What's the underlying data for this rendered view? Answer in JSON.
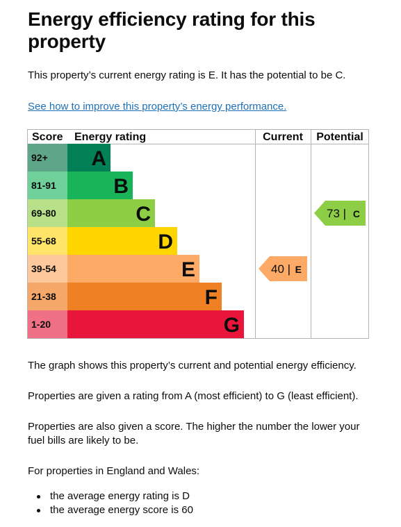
{
  "heading": "Energy efficiency rating for this property",
  "intro": "This property’s current energy rating is E. It has the potential to be C.",
  "improve_link": "See how to improve this property’s energy performance.",
  "table_headers": {
    "score": "Score",
    "rating": "Energy rating",
    "current": "Current",
    "potential": "Potential"
  },
  "chart_data": {
    "type": "table",
    "bands": [
      {
        "letter": "A",
        "score": "92+",
        "color": "#008054",
        "score_color": "#5fa58a"
      },
      {
        "letter": "B",
        "score": "81-91",
        "color": "#19b459",
        "score_color": "#6fd09a"
      },
      {
        "letter": "C",
        "score": "69-80",
        "color": "#8dce46",
        "score_color": "#b7e088"
      },
      {
        "letter": "D",
        "score": "55-68",
        "color": "#ffd500",
        "score_color": "#ffe46a"
      },
      {
        "letter": "E",
        "score": "39-54",
        "color": "#fcaa65",
        "score_color": "#fdc89c"
      },
      {
        "letter": "F",
        "score": "21-38",
        "color": "#ef8023",
        "score_color": "#f5a86a"
      },
      {
        "letter": "G",
        "score": "1-20",
        "color": "#e9153b",
        "score_color": "#f07186"
      }
    ],
    "current": {
      "score": 40,
      "label": "40 |",
      "letter": "E",
      "color": "#fcaa65"
    },
    "potential": {
      "score": 73,
      "label": "73 |",
      "letter": "C",
      "color": "#8dce46"
    }
  },
  "para1": "The graph shows this property’s current and potential energy efficiency.",
  "para2": "Properties are given a rating from A (most efficient) to G (least efficient).",
  "para3": "Properties are also given a score. The higher the number the lower your fuel bills are likely to be.",
  "para4": "For properties in England and Wales:",
  "bullets": [
    "the average energy rating is D",
    "the average energy score is 60"
  ]
}
